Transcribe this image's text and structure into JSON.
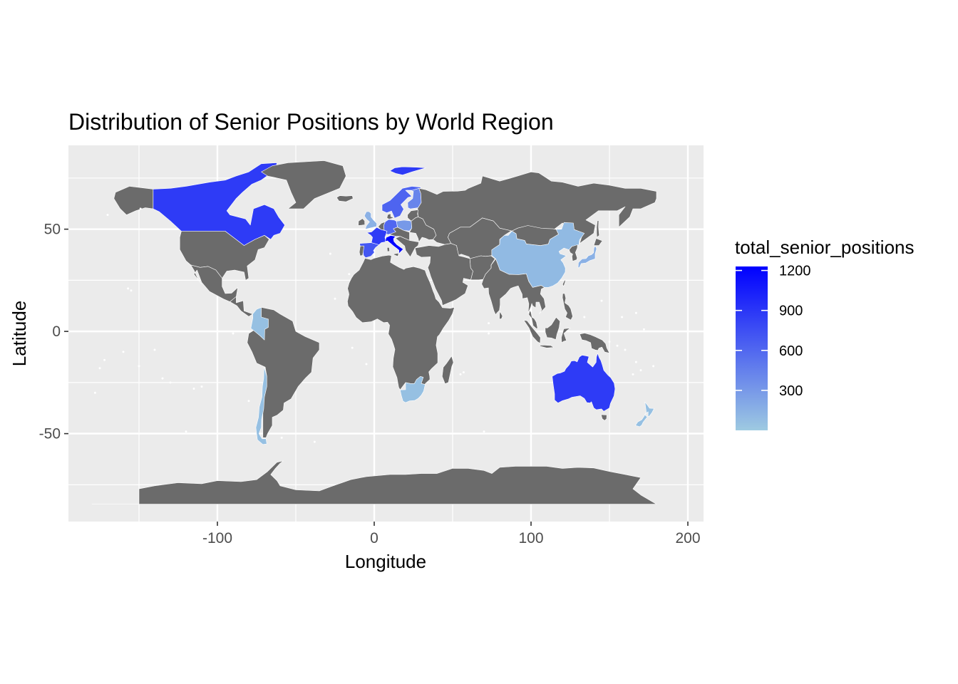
{
  "chart_data": {
    "type": "choropleth-map",
    "title": "Distribution of Senior Positions by World Region",
    "xlabel": "Longitude",
    "ylabel": "Latitude",
    "xlim": [
      -195,
      210
    ],
    "ylim": [
      -93,
      91
    ],
    "x_ticks": [
      -100,
      0,
      100,
      200
    ],
    "x_tick_labels": [
      "-100",
      "0",
      "100",
      "200"
    ],
    "y_ticks": [
      -50,
      0,
      50
    ],
    "y_tick_labels": [
      "-50",
      "0",
      "50"
    ],
    "legend": {
      "title": "total_senior_positions",
      "min": 0,
      "max": 1230,
      "breaks": [
        300,
        600,
        900,
        1200
      ],
      "break_labels": [
        "300",
        "600",
        "900",
        "1200"
      ],
      "low_color": "#9ecae1",
      "high_color": "#0000ff",
      "placement": "right"
    },
    "colors": {
      "panel": "#ebebeb",
      "grid": "#ffffff",
      "land_no_data": "#6b6b6b",
      "country_border": "#ffffff"
    },
    "regions": [
      {
        "name": "Canada",
        "value": 870
      },
      {
        "name": "Greenland",
        "value": null
      },
      {
        "name": "United States",
        "value": null
      },
      {
        "name": "Mexico",
        "value": null
      },
      {
        "name": "Colombia",
        "value": 60
      },
      {
        "name": "Chile",
        "value": 60
      },
      {
        "name": "South America (other)",
        "value": null
      },
      {
        "name": "Norway & Sweden",
        "value": 620
      },
      {
        "name": "Finland",
        "value": 420
      },
      {
        "name": "Svalbard",
        "value": 870
      },
      {
        "name": "United Kingdom",
        "value": 150
      },
      {
        "name": "France",
        "value": 870
      },
      {
        "name": "Spain",
        "value": 700
      },
      {
        "name": "Italy",
        "value": 1230
      },
      {
        "name": "Germany",
        "value": 600
      },
      {
        "name": "Poland",
        "value": 300
      },
      {
        "name": "Russia",
        "value": null
      },
      {
        "name": "Africa",
        "value": null
      },
      {
        "name": "South Africa",
        "value": 60
      },
      {
        "name": "China",
        "value": 100
      },
      {
        "name": "Japan",
        "value": 150
      },
      {
        "name": "India & South Asia",
        "value": null
      },
      {
        "name": "Southeast Asia",
        "value": null
      },
      {
        "name": "Australia",
        "value": 870
      },
      {
        "name": "New Zealand",
        "value": 60
      },
      {
        "name": "Antarctica",
        "value": null
      }
    ]
  }
}
